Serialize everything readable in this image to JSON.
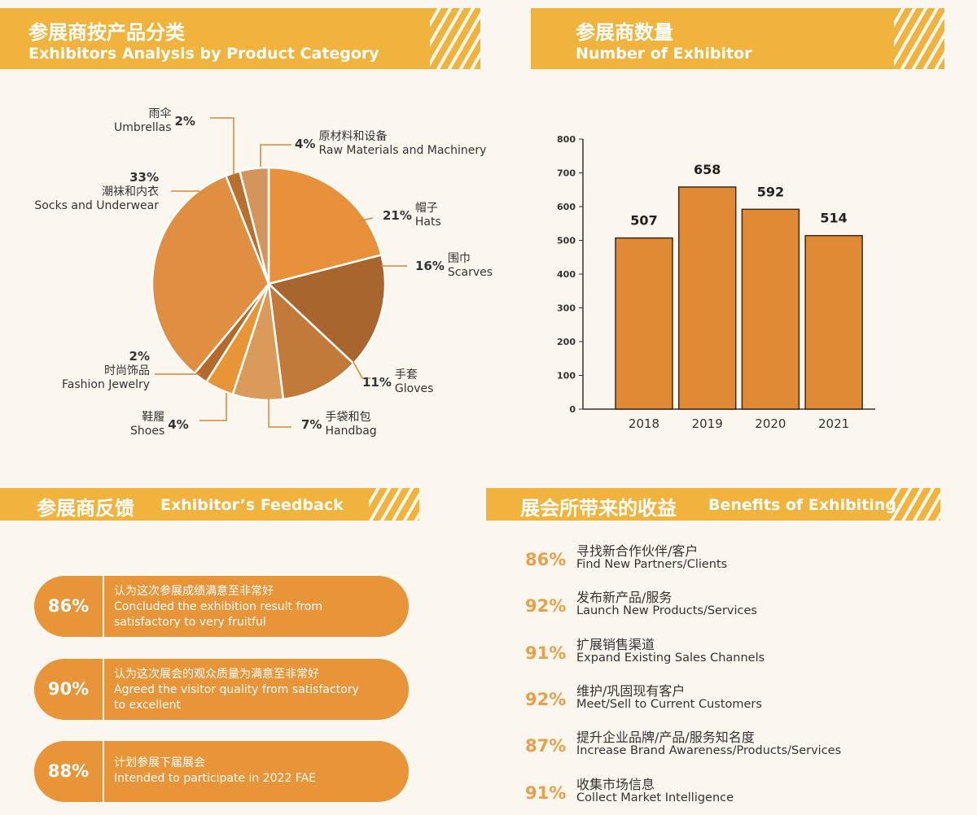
{
  "category": {
    "title_zh": "参展商按产品分类",
    "title_en": "Exhibitors Analysis by Product Category"
  },
  "count": {
    "title_zh": "参展商数量",
    "title_en": "Number of Exhibitor"
  },
  "feedback": {
    "title_zh": "参展商反馈",
    "title_en": "Exhibitor’s Feedback",
    "items": [
      {
        "pct": "86%",
        "zh": "认为这次参展成绩满意至非常好",
        "en1": "Concluded the exhibition result from",
        "en2": "satisfactory to very fruitful"
      },
      {
        "pct": "90%",
        "zh": "认为这次展会的观众质量为满意至非常好",
        "en1": "Agreed the visitor quality from satisfactory",
        "en2": "to excellent"
      },
      {
        "pct": "88%",
        "zh": "计划参展下届展会",
        "en1": "Intended to participate in 2022 FAE",
        "en2": ""
      }
    ]
  },
  "benefits": {
    "title_zh": "展会所带来的收益",
    "title_en": "Benefits of Exhibiting",
    "items": [
      {
        "pct": "86%",
        "zh": "寻找新合作伙伴/客户",
        "en": "Find New Partners/Clients"
      },
      {
        "pct": "92%",
        "zh": "发布新产品/服务",
        "en": "Launch New Products/Services"
      },
      {
        "pct": "91%",
        "zh": "扩展销售渠道",
        "en": "Expand Existing Sales Channels"
      },
      {
        "pct": "92%",
        "zh": "维护/巩固现有客户",
        "en": "Meet/Sell to Current Customers"
      },
      {
        "pct": "87%",
        "zh": "提升企业品牌/产品/服务知名度",
        "en": "Increase Brand Awareness/Products/Services"
      },
      {
        "pct": "91%",
        "zh": "收集市场信息",
        "en": "Collect Market Intelligence"
      }
    ]
  },
  "chart_data": [
    {
      "type": "pie",
      "slices": [
        {
          "zh": "帽子",
          "en": "Hats",
          "value": 21,
          "label": "21%",
          "color": "#e8913a"
        },
        {
          "zh": "围巾",
          "en": "Scarves",
          "value": 16,
          "label": "16%",
          "color": "#a8652e"
        },
        {
          "zh": "手套",
          "en": "Gloves",
          "value": 11,
          "label": "11%",
          "color": "#c27a3a"
        },
        {
          "zh": "手袋和包",
          "en": "Handbag",
          "value": 7,
          "label": "7%",
          "color": "#d99a5a"
        },
        {
          "zh": "鞋履",
          "en": "Shoes",
          "value": 4,
          "label": "4%",
          "color": "#e89537"
        },
        {
          "zh": "时尚饰品",
          "en": "Fashion Jewelry",
          "value": 2,
          "label": "2%",
          "color": "#b46a2c"
        },
        {
          "zh": "潮袜和内衣",
          "en": "Socks and Underwear",
          "value": 33,
          "label": "33%",
          "color": "#e08f42"
        },
        {
          "zh": "雨伞",
          "en": "Umbrellas",
          "value": 2,
          "label": "2%",
          "color": "#b8702e"
        },
        {
          "zh": "原材料和设备",
          "en": "Raw Materials and Machinery",
          "value": 4,
          "label": "4%",
          "color": "#d4955c"
        }
      ]
    },
    {
      "type": "bar",
      "categories": [
        "2018",
        "2019",
        "2020",
        "2021"
      ],
      "values": [
        507,
        658,
        592,
        514
      ],
      "ylim": [
        0,
        800
      ],
      "yticks": [
        "0",
        "100",
        "200",
        "300",
        "400",
        "500",
        "600",
        "700",
        "800"
      ],
      "color": "#e08a35"
    }
  ]
}
